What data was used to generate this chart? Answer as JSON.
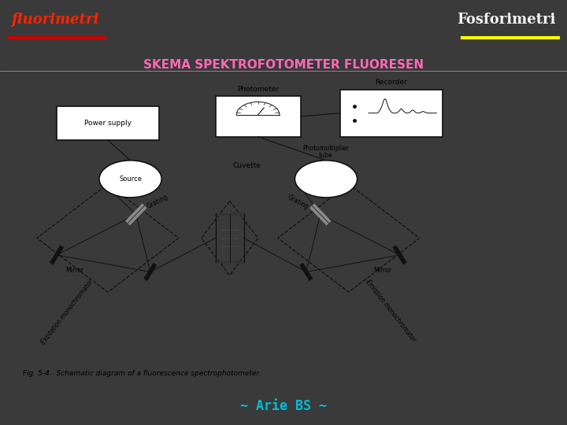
{
  "bg_color": "#3a3a3a",
  "content_bg": "#f0ede8",
  "title_top_left": "fluorimetri",
  "title_top_left_color": "#ff2200",
  "title_top_left_underline_color": "#cc0000",
  "title_top_right": "Fosforimetri",
  "title_top_right_color": "#f5f5f5",
  "title_top_right_underline_color": "#ffff00",
  "subtitle": "SKEMA SPEKTROFOTOMETER FLUORESEN",
  "subtitle_color": "#ff69b4",
  "footer_text": "~ Arie BS ~",
  "footer_color": "#00bcd4",
  "fig_caption": "Fig. 5-4.  Schematic diagram of a fluorescence spectrophotometer.",
  "diagram_image_placeholder": true
}
